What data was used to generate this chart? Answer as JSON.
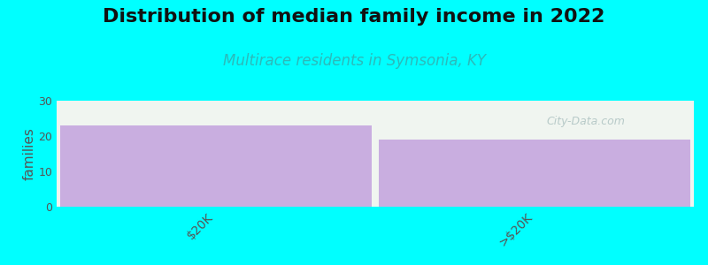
{
  "title": "Distribution of median family income in 2022",
  "subtitle": "Multirace residents in Symsonia, KY",
  "categories": [
    "$20K",
    ">$20K"
  ],
  "values": [
    23,
    19
  ],
  "bar_color": "#c9aee0",
  "background_color": "#00ffff",
  "plot_bg_color": "#f0f5f0",
  "ylabel": "families",
  "ylim": [
    0,
    30
  ],
  "yticks": [
    0,
    10,
    20,
    30
  ],
  "title_fontsize": 16,
  "subtitle_fontsize": 12,
  "subtitle_color": "#2bbaba",
  "ylabel_color": "#555555",
  "watermark": "City-Data.com",
  "bar_width": 0.98,
  "title_color": "#111111"
}
